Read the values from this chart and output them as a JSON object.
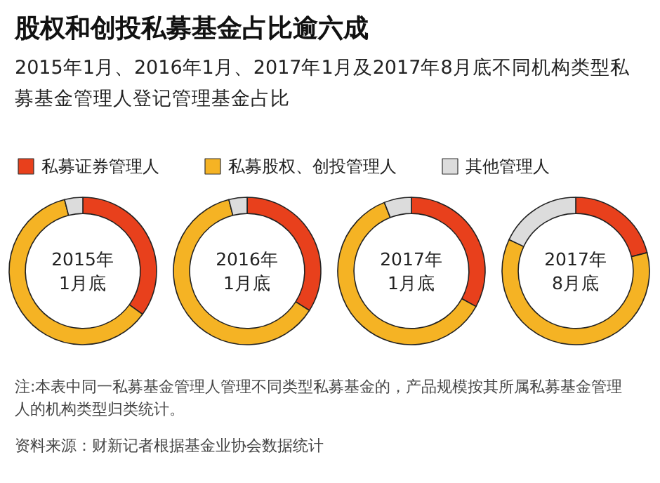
{
  "chart_data": [
    {
      "type": "other",
      "title": "股权和创投私募基金占比逾六成",
      "subtitle": "2015年1月、2016年1月、2017年1月及2017年8月底不同机构类型私募基金管理人登记管理基金占比",
      "annotations": [
        "注:本表中同一私募基金管理人管理不同类型私募基金的，产品规模按其所属私募基金管理人的机构类型归类统计。",
        "资料来源：财新记者根据基金业协会数据统计"
      ]
    },
    {
      "type": "donut",
      "title": "2015年\n1月底",
      "categories": [
        "私募证券管理人",
        "私募股权、创投管理人",
        "其他管理人"
      ],
      "values": [
        35,
        61,
        4
      ],
      "colors": [
        "#e8401c",
        "#f5b324",
        "#dcdcdc"
      ],
      "legend": "top"
    },
    {
      "type": "donut",
      "title": "2016年\n1月底",
      "values": [
        34,
        62,
        4
      ],
      "colors": [
        "#e8401c",
        "#f5b324",
        "#dcdcdc"
      ]
    },
    {
      "type": "donut",
      "title": "2017年\n1月底",
      "values": [
        33,
        61,
        6
      ],
      "colors": [
        "#e8401c",
        "#f5b324",
        "#dcdcdc"
      ]
    },
    {
      "type": "donut",
      "title": "2017年\n8月底",
      "values": [
        21,
        61,
        18
      ],
      "colors": [
        "#e8401c",
        "#f5b324",
        "#dcdcdc"
      ]
    }
  ]
}
